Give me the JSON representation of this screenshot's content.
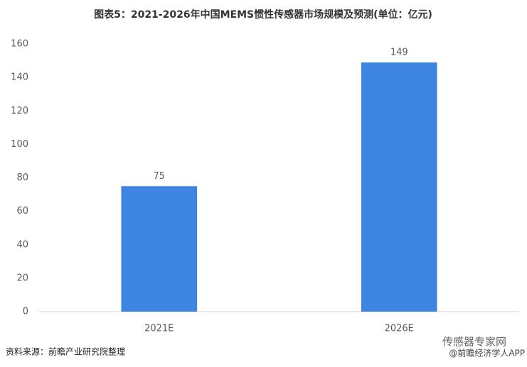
{
  "chart_data": {
    "type": "bar",
    "title": "图表5：2021-2026年中国MEMS惯性传感器市场规模及预测(单位：亿元)",
    "categories": [
      "2021E",
      "2026E"
    ],
    "values": [
      75,
      149
    ],
    "color": "#3d85e0",
    "ylim": [
      0,
      160
    ],
    "yticks": [
      0,
      20,
      40,
      60,
      80,
      100,
      120,
      140,
      160
    ],
    "grid": false,
    "source": "资料来源：前瞻产业研究院整理",
    "watermarks": [
      "传感器专家网",
      "@前瞻经济学人APP"
    ]
  }
}
